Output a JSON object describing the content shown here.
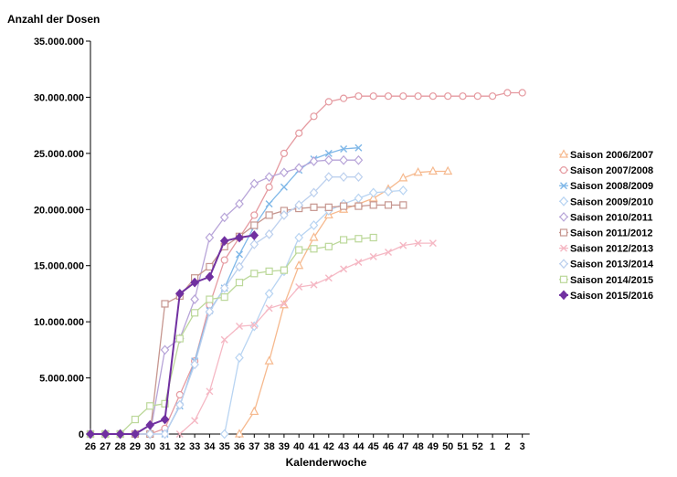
{
  "chart_data": {
    "type": "line",
    "title": "",
    "ylabel": "Anzahl der Dosen",
    "xlabel": "Kalenderwoche",
    "ylim": [
      0,
      35000000
    ],
    "y_ticks": [
      "0",
      "5.000.000",
      "10.000.000",
      "15.000.000",
      "20.000.000",
      "25.000.000",
      "30.000.000",
      "35.000.000"
    ],
    "y_tick_values": [
      0,
      5000000,
      10000000,
      15000000,
      20000000,
      25000000,
      30000000,
      35000000
    ],
    "categories": [
      "26",
      "27",
      "28",
      "29",
      "30",
      "31",
      "32",
      "33",
      "34",
      "35",
      "36",
      "37",
      "38",
      "39",
      "40",
      "41",
      "42",
      "43",
      "44",
      "45",
      "46",
      "47",
      "48",
      "49",
      "50",
      "51",
      "52",
      "1",
      "2",
      "3"
    ],
    "grid": false,
    "legend_position": "right",
    "series": [
      {
        "name": "Saison 2006/2007",
        "color": "#f6b98e",
        "marker": "triangle",
        "values": [
          null,
          null,
          null,
          null,
          null,
          null,
          null,
          null,
          null,
          null,
          0,
          2000000,
          6500000,
          11500000,
          15000000,
          17500000,
          19500000,
          20000000,
          20500000,
          21000000,
          21800000,
          22800000,
          23300000,
          23400000,
          23400000,
          null,
          null,
          null,
          null,
          null
        ]
      },
      {
        "name": "Saison 2007/2008",
        "color": "#e59aa0",
        "marker": "circle",
        "values": [
          0,
          0,
          0,
          0,
          0,
          500000,
          3500000,
          6500000,
          11500000,
          15500000,
          17500000,
          19500000,
          22000000,
          25000000,
          26800000,
          28300000,
          29600000,
          29900000,
          30100000,
          30100000,
          30100000,
          30100000,
          30100000,
          30100000,
          30100000,
          30100000,
          30100000,
          30100000,
          30400000,
          30400000
        ]
      },
      {
        "name": "Saison 2008/2009",
        "color": "#80b8e8",
        "marker": "x",
        "values": [
          0,
          0,
          0,
          0,
          0,
          0,
          2500000,
          6500000,
          11000000,
          13000000,
          16000000,
          18500000,
          20500000,
          22000000,
          23500000,
          24500000,
          25000000,
          25400000,
          25500000,
          null,
          null,
          null,
          null,
          null,
          null,
          null,
          null,
          null,
          null,
          null
        ]
      },
      {
        "name": "Saison 2009/2010",
        "color": "#b8d4f2",
        "marker": "diamond",
        "values": [
          null,
          null,
          null,
          null,
          null,
          null,
          null,
          null,
          null,
          0,
          6800000,
          9600000,
          12500000,
          14500000,
          17500000,
          18600000,
          19900000,
          20500000,
          21000000,
          21500000,
          21600000,
          21700000,
          null,
          null,
          null,
          null,
          null,
          null,
          null,
          null
        ]
      },
      {
        "name": "Saison 2010/2011",
        "color": "#b7a4d8",
        "marker": "diamond",
        "values": [
          0,
          0,
          0,
          0,
          0,
          7500000,
          8500000,
          12000000,
          17500000,
          19300000,
          20500000,
          22300000,
          22900000,
          23300000,
          23700000,
          24300000,
          24400000,
          24400000,
          24400000,
          null,
          null,
          null,
          null,
          null,
          null,
          null,
          null,
          null,
          null,
          null
        ]
      },
      {
        "name": "Saison 2011/2012",
        "color": "#c6968f",
        "marker": "square",
        "values": [
          0,
          0,
          0,
          0,
          0,
          11600000,
          12300000,
          13900000,
          14900000,
          16700000,
          17600000,
          18600000,
          19500000,
          19900000,
          20100000,
          20200000,
          20200000,
          20300000,
          20300000,
          20400000,
          20400000,
          20400000,
          null,
          null,
          null,
          null,
          null,
          null,
          null,
          null
        ]
      },
      {
        "name": "Saison 2012/2013",
        "color": "#f5b8c4",
        "marker": "x",
        "values": [
          null,
          null,
          null,
          null,
          null,
          null,
          0,
          1200000,
          3800000,
          8400000,
          9600000,
          9700000,
          11200000,
          11600000,
          13100000,
          13300000,
          13900000,
          14700000,
          15300000,
          15800000,
          16200000,
          16800000,
          17000000,
          17000000,
          null,
          null,
          null,
          null,
          null,
          null
        ]
      },
      {
        "name": "Saison 2013/2014",
        "color": "#bcd0ee",
        "marker": "diamond",
        "values": [
          0,
          0,
          0,
          0,
          0,
          0,
          2600000,
          6200000,
          10900000,
          13000000,
          14900000,
          16900000,
          17800000,
          19500000,
          20400000,
          21500000,
          22900000,
          22900000,
          22900000,
          null,
          null,
          null,
          null,
          null,
          null,
          null,
          null,
          null,
          null,
          null
        ]
      },
      {
        "name": "Saison 2014/2015",
        "color": "#bcd89a",
        "marker": "square",
        "values": [
          0,
          0,
          0,
          1300000,
          2500000,
          2700000,
          8500000,
          10800000,
          12000000,
          12200000,
          13500000,
          14300000,
          14500000,
          14600000,
          16400000,
          16500000,
          16700000,
          17300000,
          17400000,
          17500000,
          null,
          null,
          null,
          null,
          null,
          null,
          null,
          null,
          null,
          null
        ]
      },
      {
        "name": "Saison 2015/2016",
        "color": "#7030a0",
        "marker": "diamond",
        "values": [
          0,
          0,
          0,
          0,
          800000,
          1300000,
          12500000,
          13500000,
          14000000,
          17200000,
          17500000,
          17700000,
          null,
          null,
          null,
          null,
          null,
          null,
          null,
          null,
          null,
          null,
          null,
          null,
          null,
          null,
          null,
          null,
          null,
          null
        ]
      }
    ]
  }
}
